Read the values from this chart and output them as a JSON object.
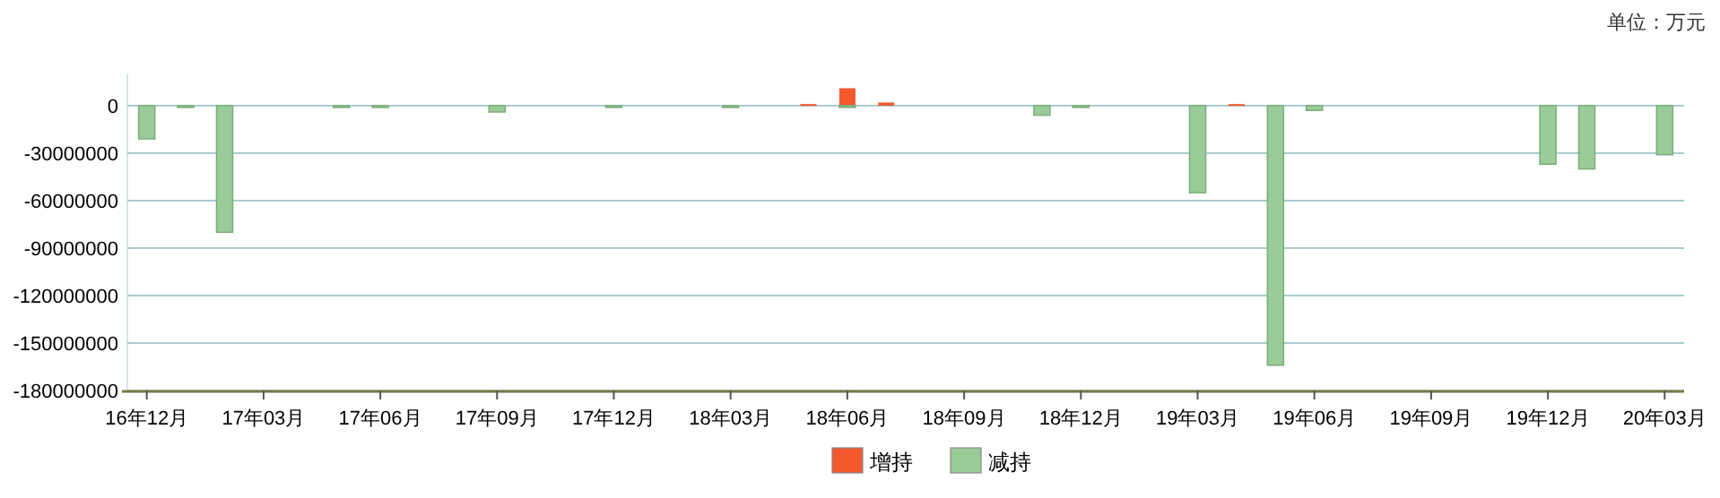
{
  "chart_data": {
    "type": "bar",
    "annotations": [
      "单位：万元"
    ],
    "categories": [
      "16年12月",
      null,
      null,
      "17年03月",
      null,
      null,
      "17年06月",
      null,
      null,
      "17年09月",
      null,
      null,
      "17年12月",
      null,
      null,
      "18年03月",
      null,
      null,
      "18年06月",
      null,
      null,
      "18年09月",
      null,
      null,
      "18年12月",
      null,
      null,
      "19年03月",
      null,
      null,
      "19年06月",
      null,
      null,
      "19年09月",
      null,
      null,
      "19年12月",
      null,
      null,
      "20年03月"
    ],
    "series": [
      {
        "name": "增持",
        "color": "#f4582d",
        "values": [
          null,
          null,
          null,
          null,
          null,
          null,
          null,
          null,
          null,
          null,
          null,
          null,
          null,
          null,
          null,
          null,
          null,
          1000000,
          11000000,
          2000000,
          null,
          null,
          null,
          null,
          null,
          null,
          null,
          null,
          1000000,
          null,
          null,
          null,
          null,
          null,
          null,
          null,
          null,
          null,
          null,
          null
        ]
      },
      {
        "name": "减持",
        "color": "#99cc99",
        "values": [
          -21000000,
          -1000000,
          -80000000,
          null,
          null,
          -1000000,
          -1000000,
          null,
          null,
          -4000000,
          null,
          null,
          -1000000,
          null,
          null,
          -1000000,
          null,
          null,
          -1000000,
          null,
          null,
          null,
          null,
          -6000000,
          -1000000,
          null,
          null,
          -55000000,
          null,
          -164000000,
          -3000000,
          null,
          null,
          null,
          null,
          null,
          -37000000,
          -40000000,
          null,
          -31000000
        ]
      }
    ],
    "ylim": [
      -180000000,
      20000000
    ],
    "yticks": [
      0,
      -30000000,
      -60000000,
      -90000000,
      -120000000,
      -150000000,
      -180000000
    ],
    "grid": "y",
    "legend": "bottom"
  }
}
